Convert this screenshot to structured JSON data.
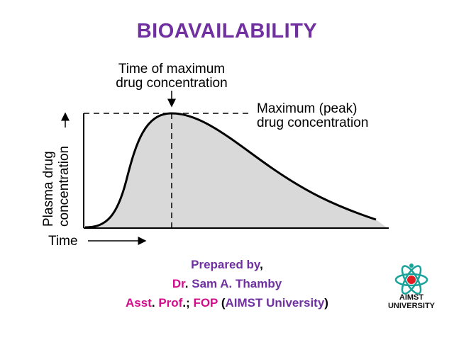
{
  "slide": {
    "title": "BIOAVAILABILITY"
  },
  "diagram": {
    "tmax_label_line1": "Time of maximum",
    "tmax_label_line2": "drug concentration",
    "cmax_label_line1": "Maximum (peak)",
    "cmax_label_line2": "drug concentration",
    "y_axis_label_line1": "Plasma drug",
    "y_axis_label_line2": "concentration",
    "x_axis_label": "Time",
    "fill_color": "#d9d9d9"
  },
  "credits": {
    "prepared_by": "Prepared by",
    "prepared_by_punct": ",",
    "name_title": "Dr",
    "name_dot": ".",
    "name": "Sam A. Thamby",
    "asst": "Asst",
    "asst_dot": ". ",
    "prof": "Prof",
    "prof_punct": ".; ",
    "fop": "FOP",
    "org_open": " (",
    "org": "AIMST University",
    "org_close": ")"
  },
  "logo": {
    "line1": "AIMST",
    "line2": "UNIVERSITY",
    "icon": "atom-icon"
  }
}
